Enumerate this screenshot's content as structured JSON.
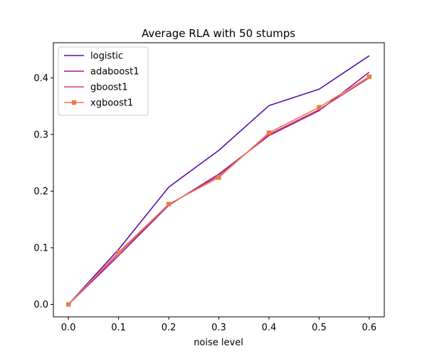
{
  "chart_data": {
    "type": "line",
    "title": "Average RLA with 50 stumps",
    "xlabel": "noise level",
    "ylabel": "",
    "x": [
      0.0,
      0.1,
      0.2,
      0.3,
      0.4,
      0.5,
      0.6
    ],
    "xticks": [
      "0.0",
      "0.1",
      "0.2",
      "0.3",
      "0.4",
      "0.5",
      "0.6"
    ],
    "yticks": [
      "0.0",
      "0.1",
      "0.2",
      "0.3",
      "0.4"
    ],
    "ytick_values": [
      0.0,
      0.1,
      0.2,
      0.3,
      0.4
    ],
    "xlim": [
      -0.03,
      0.63
    ],
    "ylim": [
      -0.022,
      0.462
    ],
    "grid": false,
    "legend_position": "top-left",
    "series": [
      {
        "name": "logistic",
        "color": "#5a0fa8",
        "marker": "none",
        "values": [
          0.0,
          0.097,
          0.207,
          0.272,
          0.351,
          0.38,
          0.439
        ]
      },
      {
        "name": "adaboost1",
        "color": "#9c179e",
        "marker": "none",
        "values": [
          0.0,
          0.086,
          0.175,
          0.23,
          0.298,
          0.342,
          0.41
        ]
      },
      {
        "name": "gboost1",
        "color": "#d0436f",
        "marker": "none",
        "values": [
          0.0,
          0.09,
          0.176,
          0.227,
          0.3,
          0.344,
          0.4
        ]
      },
      {
        "name": "xgboost1",
        "color": "#ec7a4c",
        "marker": "square",
        "values": [
          0.0,
          0.092,
          0.177,
          0.224,
          0.303,
          0.348,
          0.402
        ]
      }
    ]
  }
}
